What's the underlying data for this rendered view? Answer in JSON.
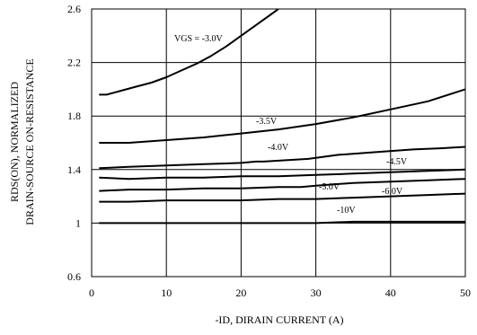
{
  "chart_data": {
    "type": "line",
    "xlabel": "-ID, DIRAIN CURRENT (A)",
    "ylabel_line1": "RDS(ON), NORMALIZED",
    "ylabel_line2": "DRAIN-SOURCE ON-RESISTANCE",
    "xlim": [
      0,
      50
    ],
    "ylim": [
      0.6,
      2.6
    ],
    "x_ticks": [
      "0",
      "10",
      "20",
      "30",
      "40",
      "50"
    ],
    "y_ticks": [
      "0.6",
      "1",
      "1.4",
      "1.8",
      "2.2",
      "2.6"
    ],
    "grid": true,
    "series": [
      {
        "name": "VGS = -3.0V",
        "points": [
          [
            1,
            1.96
          ],
          [
            2,
            1.96
          ],
          [
            4,
            1.99
          ],
          [
            6,
            2.02
          ],
          [
            8,
            2.05
          ],
          [
            10,
            2.09
          ],
          [
            12,
            2.14
          ],
          [
            14,
            2.19
          ],
          [
            16,
            2.25
          ],
          [
            18,
            2.32
          ],
          [
            20,
            2.4
          ],
          [
            22,
            2.48
          ],
          [
            24,
            2.56
          ],
          [
            25,
            2.6
          ]
        ]
      },
      {
        "name": "-3.5V",
        "points": [
          [
            1,
            1.6
          ],
          [
            5,
            1.6
          ],
          [
            10,
            1.62
          ],
          [
            15,
            1.64
          ],
          [
            20,
            1.67
          ],
          [
            25,
            1.7
          ],
          [
            30,
            1.74
          ],
          [
            35,
            1.79
          ],
          [
            40,
            1.85
          ],
          [
            45,
            1.91
          ],
          [
            50,
            2.0
          ]
        ]
      },
      {
        "name": "-4.0V",
        "points": [
          [
            1,
            1.41
          ],
          [
            5,
            1.42
          ],
          [
            10,
            1.43
          ],
          [
            15,
            1.44
          ],
          [
            20,
            1.45
          ],
          [
            22,
            1.46
          ],
          [
            23,
            1.46
          ],
          [
            29,
            1.48
          ],
          [
            33,
            1.51
          ],
          [
            38,
            1.53
          ],
          [
            43,
            1.55
          ],
          [
            47,
            1.56
          ],
          [
            50,
            1.57
          ]
        ]
      },
      {
        "name": "-4.5V",
        "points": [
          [
            1,
            1.34
          ],
          [
            5,
            1.33
          ],
          [
            10,
            1.34
          ],
          [
            15,
            1.34
          ],
          [
            20,
            1.35
          ],
          [
            25,
            1.35
          ],
          [
            30,
            1.36
          ],
          [
            35,
            1.37
          ],
          [
            40,
            1.38
          ],
          [
            45,
            1.39
          ],
          [
            50,
            1.4
          ]
        ]
      },
      {
        "name": "-5.0V",
        "points": [
          [
            1,
            1.24
          ],
          [
            5,
            1.25
          ],
          [
            10,
            1.25
          ],
          [
            15,
            1.26
          ],
          [
            20,
            1.26
          ],
          [
            25,
            1.27
          ],
          [
            28,
            1.27
          ],
          [
            30,
            1.28
          ],
          [
            35,
            1.3
          ],
          [
            40,
            1.31
          ],
          [
            45,
            1.32
          ],
          [
            50,
            1.33
          ]
        ]
      },
      {
        "name": "-6.0V",
        "points": [
          [
            1,
            1.16
          ],
          [
            5,
            1.16
          ],
          [
            10,
            1.17
          ],
          [
            15,
            1.17
          ],
          [
            20,
            1.17
          ],
          [
            25,
            1.18
          ],
          [
            30,
            1.18
          ],
          [
            35,
            1.19
          ],
          [
            40,
            1.2
          ],
          [
            45,
            1.21
          ],
          [
            50,
            1.22
          ]
        ]
      },
      {
        "name": "-10V",
        "points": [
          [
            1,
            1.0
          ],
          [
            10,
            1.0
          ],
          [
            20,
            1.0
          ],
          [
            30,
            1.0
          ],
          [
            35,
            1.01
          ],
          [
            40,
            1.01
          ],
          [
            45,
            1.01
          ],
          [
            50,
            1.01
          ]
        ]
      }
    ]
  }
}
